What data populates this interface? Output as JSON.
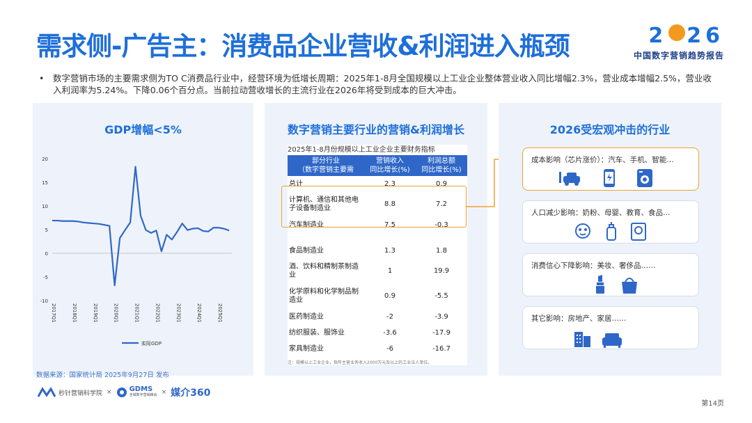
{
  "header": {
    "title": "需求侧-广告主：消费品企业营收&利润进入瓶颈",
    "logo_year_left": "2",
    "logo_year_right": "26",
    "logo_subtitle": "中国数字营销趋势报告"
  },
  "bullet": {
    "dot": "•",
    "text": "数字营销市场的主要需求侧为TO C消费品行业中，经营环境为低增长周期：2025年1-8月全国规模以上工业企业整体营业收入同比增幅2.3%，营业成本增幅2.5%，营业收入利润率为5.24%。下降0.06个百分点。当前拉动营收增长的主流行业在2026年将受到成本的巨大冲击。"
  },
  "panel_gdp": {
    "title": "GDP增幅<5%"
  },
  "chart_data": {
    "type": "line",
    "title": "",
    "ylim": [
      -10,
      20
    ],
    "yticks": [
      20,
      15,
      10,
      5,
      0,
      -5,
      -10
    ],
    "xticks": [
      "2017Q1",
      "2018Q1",
      "2019Q1",
      "2020Q1",
      "2021Q1",
      "2022Q1",
      "2023Q1",
      "2024Q1",
      "2025Q1"
    ],
    "series": [
      {
        "name": "实际GDP",
        "color": "#2f67c8",
        "x": [
          0,
          1,
          2,
          3,
          4,
          5,
          6,
          7,
          8,
          9,
          10,
          11,
          12,
          13,
          14,
          15,
          16,
          17,
          18,
          19,
          20,
          21,
          22,
          23,
          24,
          25,
          26,
          27,
          28,
          29,
          30,
          31,
          32,
          33,
          34
        ],
        "values": [
          6.9,
          6.9,
          6.8,
          6.8,
          6.8,
          6.7,
          6.5,
          6.4,
          6.3,
          6.2,
          6.0,
          5.8,
          -6.8,
          3.2,
          4.9,
          6.5,
          18.3,
          7.9,
          4.9,
          4.3,
          4.8,
          0.4,
          3.9,
          2.9,
          4.5,
          6.3,
          4.9,
          5.2,
          5.3,
          4.7,
          4.6,
          5.4,
          5.4,
          5.2,
          4.8
        ]
      }
    ],
    "legend": "bottom-center",
    "grid": false
  },
  "panel_table": {
    "title": "数字营销主要行业的营销&利润增长",
    "caption": "2025年1-8月份规模以上工业企业主要财务指标",
    "headers": [
      "部分行业\n（数字营销主要需",
      "营销收入\n同比增长(%)",
      "利润总额\n同比增长(%)"
    ],
    "rows": [
      {
        "name": "总计",
        "rev": "2.3",
        "profit": "0.9"
      },
      {
        "name": "计算机、通信和其他电子设备制造业",
        "rev": "8.8",
        "profit": "7.2"
      },
      {
        "name": "汽车制造业",
        "rev": "7.5",
        "profit": "-0.3"
      },
      {
        "name": "食品制造业",
        "rev": "1.3",
        "profit": "1.8"
      },
      {
        "name": "酒、饮料和精制茶制造业",
        "rev": "1",
        "profit": "19.9"
      },
      {
        "name": "化学原料和化学制品制造业",
        "rev": "0.9",
        "profit": "-5.5"
      },
      {
        "name": "医药制造业",
        "rev": "-2",
        "profit": "-3.9"
      },
      {
        "name": "纺织服装、服饰业",
        "rev": "-3.6",
        "profit": "-17.9"
      },
      {
        "name": "家具制造业",
        "rev": "-6",
        "profit": "-16.7"
      }
    ],
    "footnote": "注：规模以上工业企业，指年主营业务收入2000万元及以上的工业法人单位。"
  },
  "panel_impact": {
    "title": "2026受宏观冲击的行业",
    "cards": [
      {
        "label": "成本影响（芯片涨价）：汽车、手机、智能…",
        "icons": [
          "car-charging-icon",
          "smartphone-icon",
          "washing-machine-icon"
        ]
      },
      {
        "label": "人口减少影响：奶粉、母婴、教育、食品…",
        "icons": [
          "baby-icon",
          "baby-bottle-icon",
          "book-icon"
        ]
      },
      {
        "label": "消费信心下降影响：美妆、奢侈品……",
        "icons": [
          "lipstick-icon",
          "handbag-icon"
        ]
      },
      {
        "label": "其它影响：房地产、家居……",
        "icons": [
          "building-icon",
          "sofa-icon"
        ]
      }
    ]
  },
  "source": "数据来源：国家统计局 2025年9月27日 发布",
  "footer": {
    "brand1": "秒针营销科学院",
    "sep1": "×",
    "brand2": "GDMS",
    "brand2_sub": "全域数字营销峰会",
    "sep2": "×",
    "brand3": "媒介360"
  },
  "page_number": "第14页",
  "colors": {
    "primary": "#1e6fd9",
    "highlight": "#f0a030",
    "table_header": "#2f67c8",
    "panel_bg": "#eef3fb"
  }
}
